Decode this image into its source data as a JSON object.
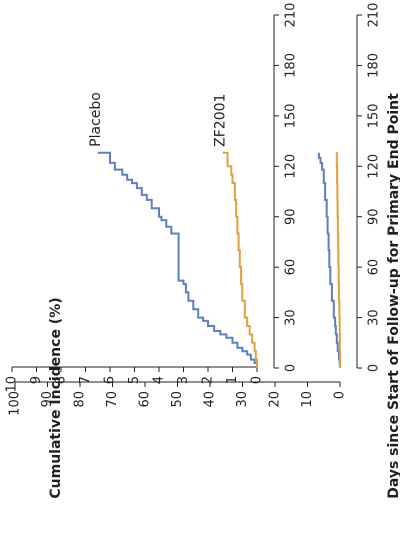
{
  "chart_data": [
    {
      "type": "line",
      "step": true,
      "orientation": "rotated-90-ccw",
      "role": "main",
      "xlabel": "Days since Start of Follow-up for Primary End Point",
      "ylabel": "Cumulative Incidence (%)",
      "xlim": [
        0,
        210
      ],
      "ylim": [
        0,
        100
      ],
      "x_ticks": [
        "0",
        "30",
        "60",
        "90",
        "120",
        "150",
        "180",
        "210"
      ],
      "y_ticks": [
        "0",
        "10",
        "20",
        "30",
        "40",
        "50",
        "60",
        "70",
        "80",
        "90",
        "100"
      ],
      "grid": false,
      "series": [
        {
          "name": "",
          "color": "#5b7fc0",
          "x": [
            0,
            2,
            5,
            10,
            15,
            20,
            25,
            30,
            40,
            50,
            60,
            70,
            80,
            90,
            100,
            110,
            118,
            122,
            125,
            128
          ],
          "y": [
            0,
            0.1,
            0.3,
            0.7,
            1.0,
            1.3,
            1.5,
            1.9,
            2.5,
            3.0,
            3.3,
            3.5,
            3.8,
            4.1,
            4.6,
            5.0,
            5.5,
            6.0,
            6.5,
            6.5
          ]
        },
        {
          "name": "",
          "color": "#e0a03c",
          "x": [
            0,
            10,
            20,
            30,
            40,
            50,
            60,
            70,
            80,
            90,
            100,
            110,
            120,
            128
          ],
          "y": [
            0,
            0.05,
            0.1,
            0.2,
            0.3,
            0.4,
            0.5,
            0.55,
            0.65,
            0.75,
            0.8,
            0.9,
            1.0,
            1.1
          ]
        }
      ]
    },
    {
      "type": "line",
      "step": true,
      "orientation": "rotated-90-ccw",
      "role": "inset",
      "xlim": [
        0,
        210
      ],
      "ylim": [
        0,
        10
      ],
      "x_ticks": [
        "0",
        "30",
        "60",
        "90",
        "120",
        "150",
        "180",
        "210"
      ],
      "y_ticks": [
        "0",
        "1",
        "2",
        "3",
        "4",
        "5",
        "6",
        "7",
        "8",
        "9",
        "10"
      ],
      "grid": false,
      "series": [
        {
          "name": "Placebo",
          "color": "#5b7fc0",
          "x": [
            0,
            3,
            5,
            8,
            10,
            12,
            15,
            18,
            20,
            22,
            25,
            28,
            30,
            35,
            40,
            45,
            50,
            52,
            60,
            70,
            80,
            84,
            88,
            90,
            95,
            100,
            103,
            107,
            110,
            112,
            115,
            118,
            122,
            128
          ],
          "y": [
            0,
            0.1,
            0.25,
            0.4,
            0.6,
            0.8,
            1.0,
            1.25,
            1.5,
            1.75,
            2.0,
            2.2,
            2.4,
            2.6,
            2.8,
            2.9,
            3.0,
            3.2,
            3.2,
            3.2,
            3.5,
            3.7,
            3.9,
            4.0,
            4.3,
            4.5,
            4.7,
            4.9,
            5.1,
            5.3,
            5.5,
            5.8,
            6.0,
            6.5
          ]
        },
        {
          "name": "ZF2001",
          "color": "#e0a03c",
          "x": [
            0,
            5,
            10,
            15,
            20,
            25,
            30,
            40,
            50,
            60,
            70,
            80,
            90,
            100,
            110,
            115,
            120,
            128
          ],
          "y": [
            0,
            0.05,
            0.1,
            0.2,
            0.3,
            0.4,
            0.5,
            0.6,
            0.65,
            0.7,
            0.75,
            0.8,
            0.85,
            0.9,
            1.0,
            1.05,
            1.2,
            1.4
          ]
        }
      ]
    }
  ]
}
